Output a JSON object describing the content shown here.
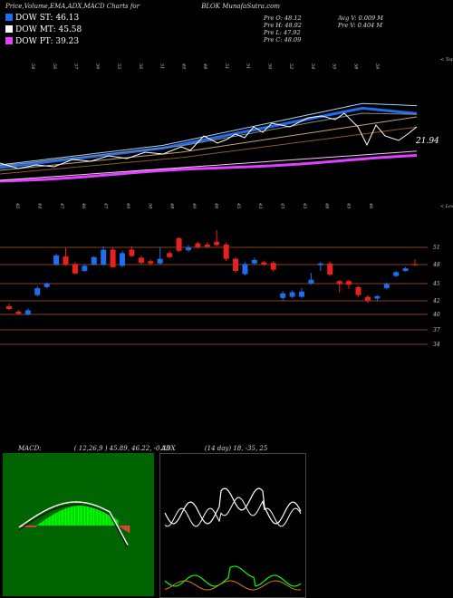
{
  "header": {
    "title": "Price,Volume,EMA,ADX,MACD Charts for",
    "symbol": "BLOK",
    "site": "MunafaSutra.com"
  },
  "legend": [
    {
      "label": "DOW ST: 46.13",
      "color": "#1e6ef0"
    },
    {
      "label": "DOW MT: 45.58",
      "color": "#ffffff"
    },
    {
      "label": "DOW PT: 39.23",
      "color": "#e040ff"
    }
  ],
  "stats": {
    "col1": [
      "Pre O: 48.12",
      "Pre H: 48.92",
      "Pre L: 47.92",
      "Pre C: 48.09"
    ],
    "col2": [
      "Avg V: 0.009 M",
      "Pre V: 0.404 M"
    ]
  },
  "volume_section": {
    "top_label": "< Tops",
    "low_label": "< Lows",
    "value_label": "21.94",
    "top_ticks": [
      "54",
      "56",
      "57",
      "56",
      "55",
      "56",
      "51",
      "49",
      "48",
      "51",
      "51",
      "50",
      "52",
      "54",
      "59",
      "58",
      "59"
    ],
    "low_ticks": [
      "42",
      "44",
      "47",
      "46",
      "47",
      "49",
      "50",
      "48",
      "49",
      "46",
      "45",
      "43",
      "43",
      "43",
      "48",
      "45",
      "46"
    ]
  },
  "chart_data": {
    "type": "candlestick",
    "y_ticks": [
      "51",
      "48",
      "45",
      "42",
      "40",
      "37",
      "34"
    ],
    "ylim": [
      33,
      52
    ],
    "candles": [
      {
        "o": 40.8,
        "c": 41.2,
        "h": 41.6,
        "l": 40.6,
        "up": false
      },
      {
        "o": 40.4,
        "c": 40.1,
        "h": 40.6,
        "l": 39.9,
        "up": false
      },
      {
        "o": 40.0,
        "c": 40.6,
        "h": 40.9,
        "l": 39.8,
        "up": true
      },
      {
        "o": 43.0,
        "c": 44.2,
        "h": 44.6,
        "l": 42.8,
        "up": true
      },
      {
        "o": 44.4,
        "c": 45.0,
        "h": 45.2,
        "l": 44.2,
        "up": true
      },
      {
        "o": 48.0,
        "c": 49.6,
        "h": 49.9,
        "l": 47.8,
        "up": true
      },
      {
        "o": 49.4,
        "c": 48.0,
        "h": 50.9,
        "l": 47.8,
        "up": false
      },
      {
        "o": 48.1,
        "c": 46.6,
        "h": 48.4,
        "l": 46.4,
        "up": false
      },
      {
        "o": 47.0,
        "c": 47.8,
        "h": 48.1,
        "l": 46.9,
        "up": true
      },
      {
        "o": 48.0,
        "c": 49.3,
        "h": 49.5,
        "l": 47.9,
        "up": true
      },
      {
        "o": 48.0,
        "c": 50.6,
        "h": 51.2,
        "l": 47.8,
        "up": true
      },
      {
        "o": 50.6,
        "c": 47.6,
        "h": 50.9,
        "l": 47.5,
        "up": false
      },
      {
        "o": 47.8,
        "c": 50.0,
        "h": 50.4,
        "l": 47.6,
        "up": true
      },
      {
        "o": 50.6,
        "c": 49.5,
        "h": 51.2,
        "l": 49.3,
        "up": false
      },
      {
        "o": 49.2,
        "c": 48.3,
        "h": 49.5,
        "l": 48.1,
        "up": false
      },
      {
        "o": 48.6,
        "c": 48.2,
        "h": 48.9,
        "l": 47.9,
        "up": false
      },
      {
        "o": 48.2,
        "c": 49.0,
        "h": 51.0,
        "l": 48.0,
        "up": true
      },
      {
        "o": 50.0,
        "c": 49.3,
        "h": 50.4,
        "l": 49.1,
        "up": false
      },
      {
        "o": 52.6,
        "c": 50.4,
        "h": 52.8,
        "l": 50.2,
        "up": false
      },
      {
        "o": 50.5,
        "c": 51.0,
        "h": 51.4,
        "l": 50.2,
        "up": true
      },
      {
        "o": 51.7,
        "c": 51.0,
        "h": 52.0,
        "l": 50.8,
        "up": false
      },
      {
        "o": 51.1,
        "c": 51.5,
        "h": 51.9,
        "l": 50.9,
        "up": false
      },
      {
        "o": 52.0,
        "c": 51.4,
        "h": 54.0,
        "l": 51.2,
        "up": false
      },
      {
        "o": 51.5,
        "c": 49.0,
        "h": 51.8,
        "l": 48.6,
        "up": false
      },
      {
        "o": 49.0,
        "c": 47.0,
        "h": 49.3,
        "l": 46.7,
        "up": false
      },
      {
        "o": 46.5,
        "c": 48.1,
        "h": 48.4,
        "l": 46.3,
        "up": true
      },
      {
        "o": 48.2,
        "c": 48.8,
        "h": 49.2,
        "l": 47.9,
        "up": true
      },
      {
        "o": 48.4,
        "c": 48.0,
        "h": 48.7,
        "l": 47.8,
        "up": false
      },
      {
        "o": 47.2,
        "c": 48.3,
        "h": 48.6,
        "l": 46.9,
        "up": false
      },
      {
        "o": 42.5,
        "c": 43.3,
        "h": 43.7,
        "l": 42.0,
        "up": true
      },
      {
        "o": 42.7,
        "c": 43.5,
        "h": 43.8,
        "l": 42.5,
        "up": true
      },
      {
        "o": 42.7,
        "c": 43.6,
        "h": 44.2,
        "l": 42.5,
        "up": true
      },
      {
        "o": 45.0,
        "c": 45.6,
        "h": 46.7,
        "l": 44.8,
        "up": true
      },
      {
        "o": 47.9,
        "c": 48.2,
        "h": 48.4,
        "l": 47.0,
        "up": true
      },
      {
        "o": 48.2,
        "c": 46.4,
        "h": 48.5,
        "l": 46.2,
        "up": false
      },
      {
        "o": 45.4,
        "c": 44.9,
        "h": 45.6,
        "l": 43.5,
        "up": false
      },
      {
        "o": 45.4,
        "c": 44.8,
        "h": 45.6,
        "l": 44.1,
        "up": false
      },
      {
        "o": 44.4,
        "c": 43.0,
        "h": 44.6,
        "l": 42.7,
        "up": false
      },
      {
        "o": 42.7,
        "c": 42.0,
        "h": 43.0,
        "l": 41.7,
        "up": false
      },
      {
        "o": 42.4,
        "c": 42.8,
        "h": 43.0,
        "l": 41.9,
        "up": true
      },
      {
        "o": 44.2,
        "c": 44.9,
        "h": 45.2,
        "l": 44.0,
        "up": true
      },
      {
        "o": 46.2,
        "c": 46.8,
        "h": 47.0,
        "l": 46.0,
        "up": true
      },
      {
        "o": 47.0,
        "c": 47.4,
        "h": 47.6,
        "l": 46.9,
        "up": true
      },
      {
        "o": 48.1,
        "c": 48.1,
        "h": 48.9,
        "l": 47.9,
        "up": false
      }
    ]
  },
  "macd": {
    "label": "MACD:",
    "values_text": "( 12,26,9 ) 45.89, 46.22, -0.33"
  },
  "adx": {
    "label": "ADX",
    "values_text": "(14 day) 18, -35, 25"
  },
  "colors": {
    "up_candle": "#1e6ef0",
    "down_candle": "#e8201e",
    "ema_short": "#1e6ef0",
    "ema_long": "#e040ff",
    "grid": "#b8552a",
    "macd_bg": "#006400",
    "macd_bar": "#00ff00"
  }
}
